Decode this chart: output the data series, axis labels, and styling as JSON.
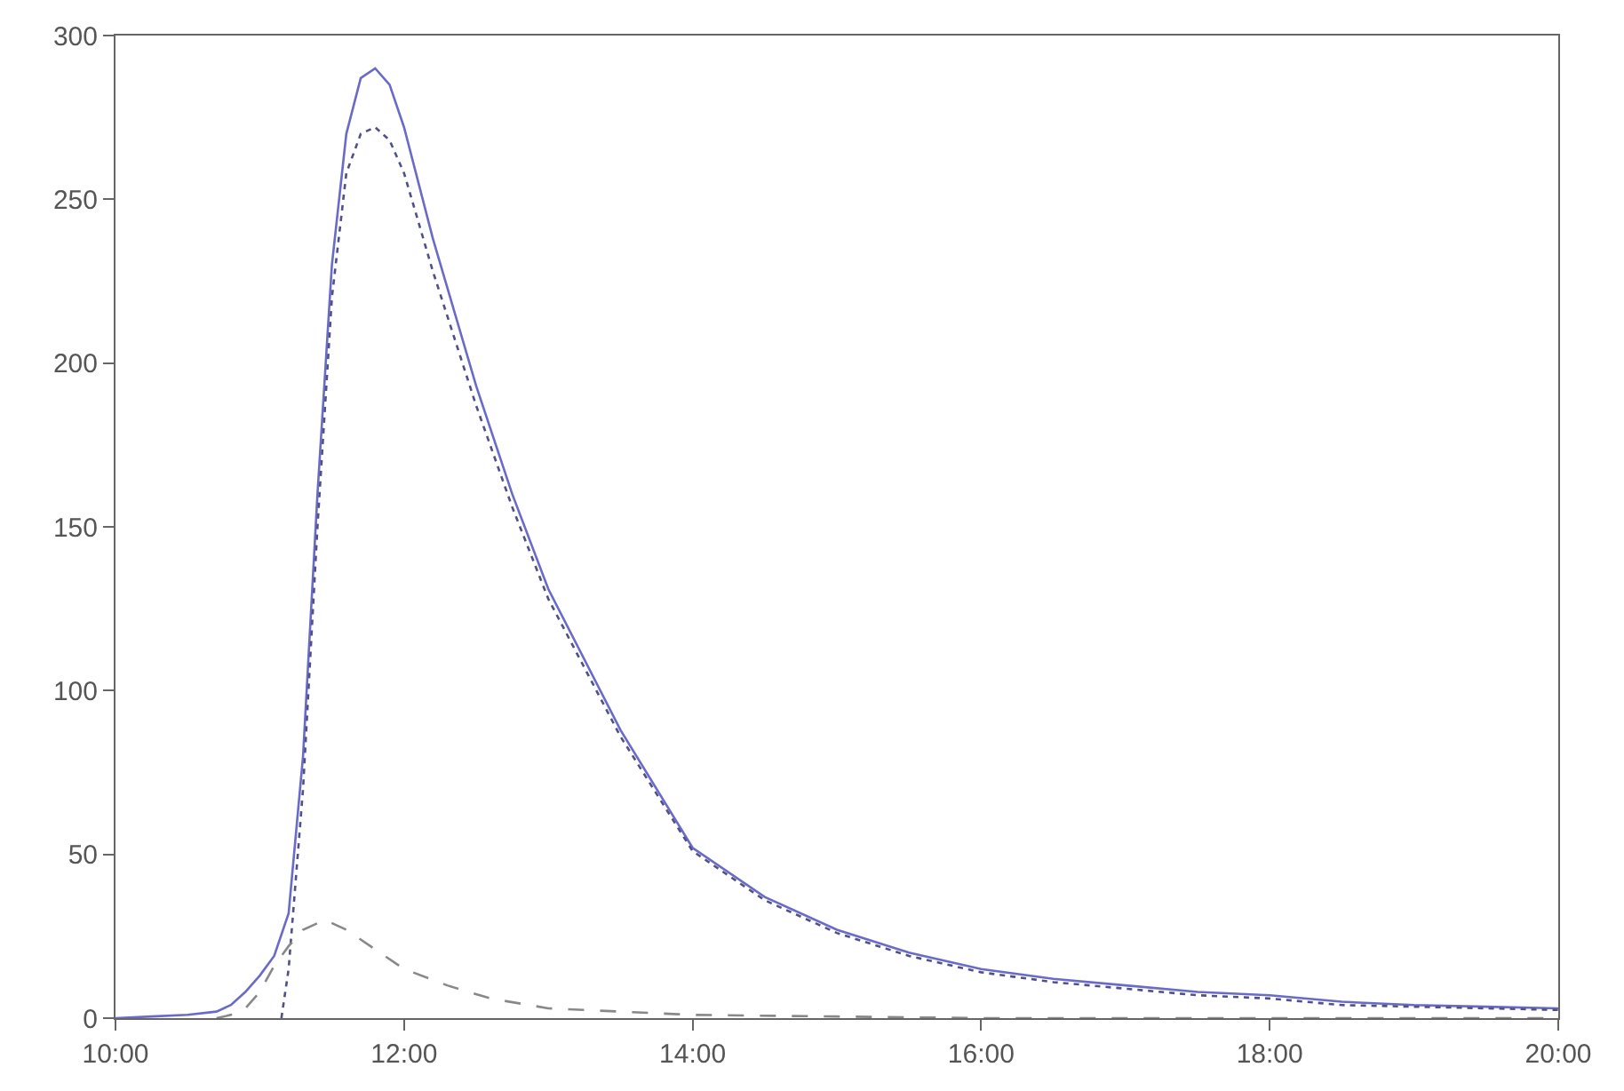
{
  "chart_data": {
    "type": "line",
    "xlim": [
      10,
      20
    ],
    "ylim": [
      0,
      300
    ],
    "xticks": [
      {
        "value": 10,
        "label": "10:00"
      },
      {
        "value": 12,
        "label": "12:00"
      },
      {
        "value": 14,
        "label": "14:00"
      },
      {
        "value": 16,
        "label": "16:00"
      },
      {
        "value": 18,
        "label": "18:00"
      },
      {
        "value": 20,
        "label": "20:00"
      }
    ],
    "yticks": [
      0,
      50,
      100,
      150,
      200,
      250,
      300
    ],
    "grid": false,
    "series": [
      {
        "color": "#6a6ac8",
        "line_style": "solid",
        "x": [
          10,
          10.25,
          10.5,
          10.7,
          10.8,
          10.9,
          11,
          11.1,
          11.2,
          11.3,
          11.4,
          11.5,
          11.6,
          11.7,
          11.8,
          11.9,
          12,
          12.2,
          12.5,
          12.75,
          13,
          13.5,
          14,
          14.5,
          15,
          15.5,
          16,
          16.5,
          17,
          17.5,
          18,
          18.5,
          19,
          19.5,
          20
        ],
        "values": [
          0,
          0.5,
          1,
          2,
          4,
          8,
          13,
          19,
          32,
          80,
          160,
          230,
          270,
          287,
          290,
          285,
          272,
          238,
          193,
          160,
          131,
          88,
          52,
          37,
          27,
          20,
          15,
          12,
          10,
          8,
          7,
          5,
          4,
          3.5,
          3
        ]
      },
      {
        "color": "#50508a",
        "line_style": "dotted",
        "x": [
          11.15,
          11.2,
          11.3,
          11.4,
          11.5,
          11.6,
          11.7,
          11.8,
          11.9,
          12,
          12.2,
          12.5,
          12.75,
          13,
          13.5,
          14,
          14.5,
          15,
          15.5,
          16,
          16.5,
          17,
          17.5,
          18,
          18.5,
          19,
          19.5,
          20
        ],
        "values": [
          0,
          15,
          70,
          150,
          220,
          258,
          270,
          272,
          268,
          258,
          228,
          187,
          156,
          128,
          86,
          51,
          36,
          26,
          19,
          14,
          11,
          9,
          7,
          6,
          4,
          3.5,
          3,
          2.5
        ]
      },
      {
        "color": "#888888",
        "line_style": "dashed",
        "x": [
          10.7,
          10.8,
          10.9,
          11,
          11.1,
          11.2,
          11.3,
          11.45,
          11.6,
          11.8,
          12,
          12.3,
          12.6,
          13,
          13.5,
          14,
          15,
          16,
          17,
          18,
          19,
          20
        ],
        "values": [
          0,
          1,
          3,
          8,
          16,
          22,
          27,
          30,
          27,
          21,
          15,
          10,
          6,
          3,
          2,
          1,
          0.5,
          0,
          0,
          0,
          0,
          0
        ]
      }
    ]
  }
}
